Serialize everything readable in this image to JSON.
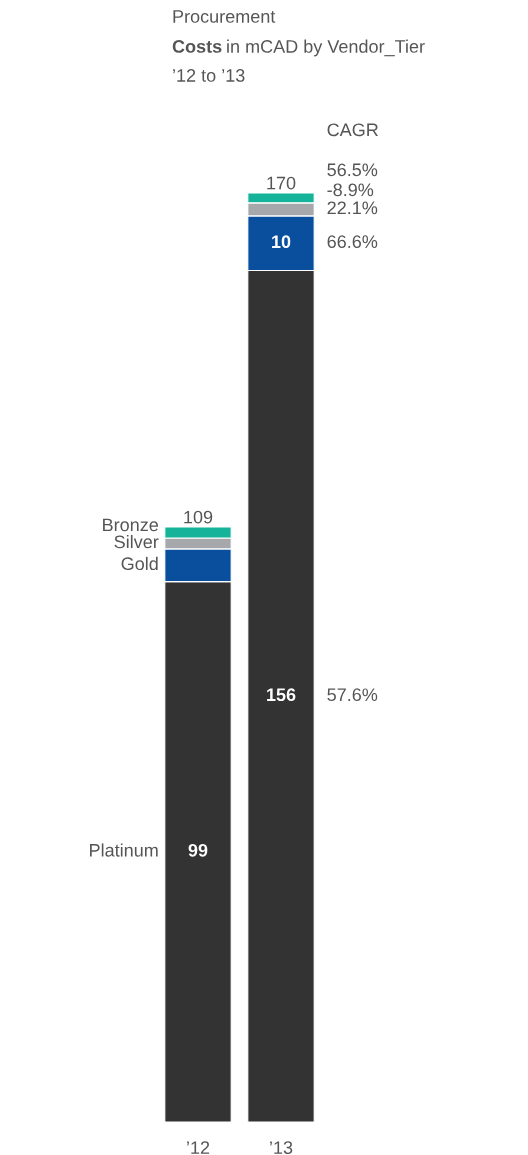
{
  "chart_data": {
    "type": "bar",
    "stacked": true,
    "title": "Procurement Costs in mCAD by Vendor_Tier",
    "subtitle": "’12 to ’13",
    "categories": [
      "’12",
      "’13"
    ],
    "series": [
      {
        "name": "Platinum",
        "color": "#333333",
        "values": [
          99,
          156
        ],
        "value_labels": [
          "99",
          "156"
        ]
      },
      {
        "name": "Gold",
        "color": "#0a4f9e",
        "values": [
          6,
          10
        ],
        "value_labels": [
          null,
          "10"
        ]
      },
      {
        "name": "Silver",
        "color": "#a6a8ab",
        "values": [
          2,
          2.4
        ]
      },
      {
        "name": "Bronze",
        "color": "#14b39a",
        "values": [
          2,
          1.8
        ]
      }
    ],
    "totals": [
      "109",
      "170"
    ],
    "annotations": [
      "CAGR",
      "56.5%",
      "-8.9%",
      "22.1%",
      "66.6%",
      "57.6%"
    ],
    "legend": false,
    "grid": false
  }
}
